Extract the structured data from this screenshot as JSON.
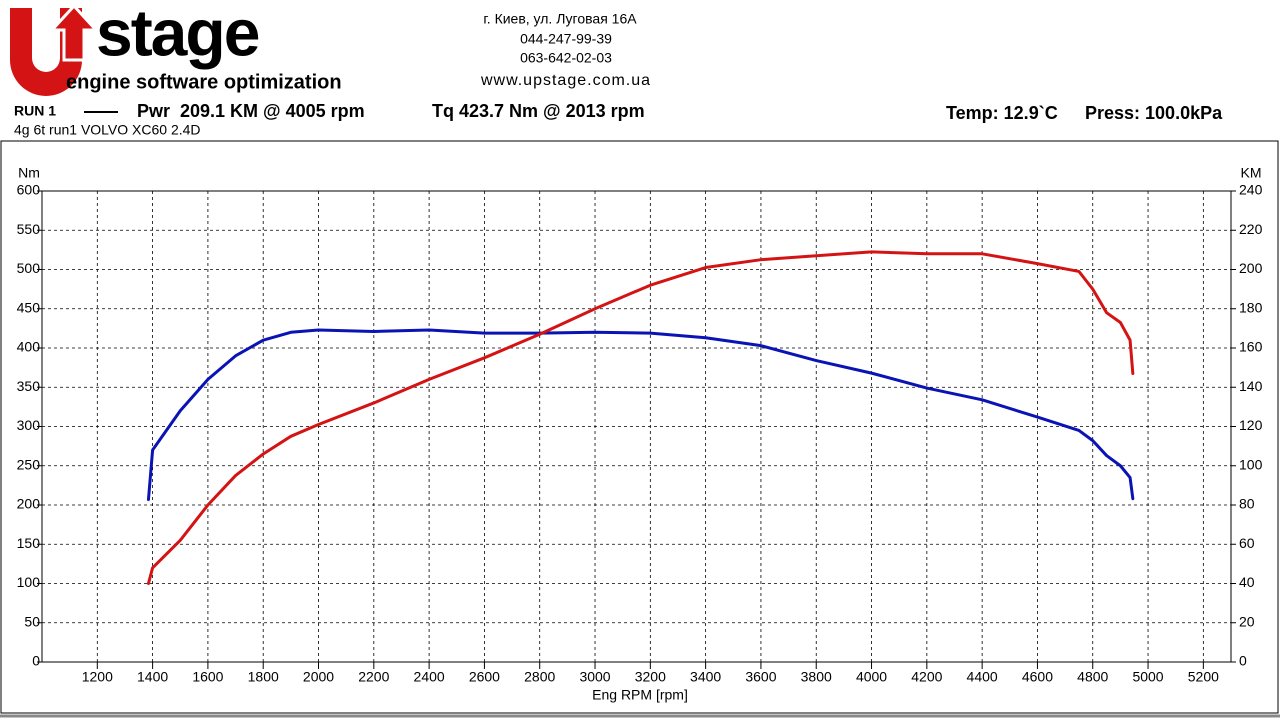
{
  "header": {
    "logo": "stage",
    "logo_tagline": "engine software optimization",
    "address": "г. Киев, ул. Луговая 16А",
    "phone1": "044-247-99-39",
    "phone2": "063-642-02-03",
    "website": "www.upstage.com.ua",
    "run": "RUN 1",
    "power_summary": "Pwr  209.1 KM @ 4005 rpm",
    "torque_summary": "Tq 423.7 Nm @ 2013 rpm",
    "temp": "Temp: 12.9`C",
    "press": "Press: 100.0kPa",
    "description": "4g 6t run1 VOLVO XC60 2.4D"
  },
  "chart_data": {
    "type": "line",
    "y_label": "Nm",
    "y2_label": "KM",
    "x_label": "Eng RPM [rpm]",
    "x": [
      1385,
      1400,
      1500,
      1600,
      1700,
      1800,
      1900,
      2000,
      2200,
      2400,
      2600,
      2800,
      3000,
      3200,
      3400,
      3600,
      3800,
      4000,
      4200,
      4400,
      4600,
      4750,
      4800,
      4850,
      4900,
      4935,
      4945
    ],
    "series": [
      {
        "name": "Tq",
        "color": "#0a14b4",
        "values": [
          207,
          270,
          320,
          360,
          390,
          410,
          420,
          423,
          421,
          423,
          419,
          419,
          420,
          419,
          413,
          403,
          384,
          368,
          349,
          334,
          312,
          295,
          282,
          263,
          250,
          235,
          208
        ]
      },
      {
        "name": "Pwr",
        "color": "#d41414",
        "axis": "y2",
        "values": [
          40,
          48,
          62,
          80,
          95,
          106,
          115,
          121,
          132,
          144,
          155,
          167,
          180,
          192,
          201,
          205,
          207,
          209,
          208,
          208,
          203,
          199,
          190,
          178,
          173,
          164,
          147
        ]
      }
    ],
    "xlim": [
      1000,
      5300
    ],
    "xticks": [
      1200,
      1400,
      1600,
      1800,
      2000,
      2200,
      2400,
      2600,
      2800,
      3000,
      3200,
      3400,
      3600,
      3800,
      4000,
      4200,
      4400,
      4600,
      4800,
      5000,
      5200
    ],
    "ylim": [
      0,
      600
    ],
    "yticks": [
      0,
      50,
      100,
      150,
      200,
      250,
      300,
      350,
      400,
      450,
      500,
      550,
      600
    ],
    "y2lim": [
      0,
      240
    ],
    "y2ticks": [
      0,
      20,
      40,
      60,
      80,
      100,
      120,
      140,
      160,
      180,
      200,
      220,
      240
    ],
    "grid": true
  }
}
